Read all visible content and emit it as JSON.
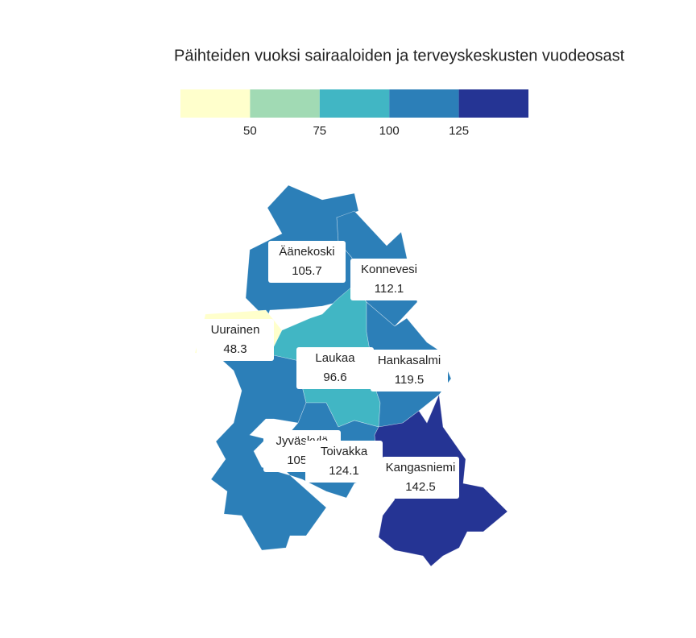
{
  "title": "Päihteiden vuoksi sairaaloiden ja terveyskeskusten vuodeosast",
  "legend": {
    "colors": [
      "#ffffcc",
      "#a1dab4",
      "#41b6c4",
      "#2c7fb8",
      "#253494"
    ],
    "ticks": [
      50,
      75,
      100,
      125
    ]
  },
  "regions": [
    {
      "name": "Äänekoski",
      "value": 105.7
    },
    {
      "name": "Konnevesi",
      "value": 112.1
    },
    {
      "name": "Uurainen",
      "value": 48.3
    },
    {
      "name": "Laukaa",
      "value": 96.6
    },
    {
      "name": "Hankasalmi",
      "value": 119.5
    },
    {
      "name": "Jyväskylä",
      "value": 105.5
    },
    {
      "name": "Toivakka",
      "value": 124.1
    },
    {
      "name": "Kangasniemi",
      "value": 142.5
    }
  ]
}
